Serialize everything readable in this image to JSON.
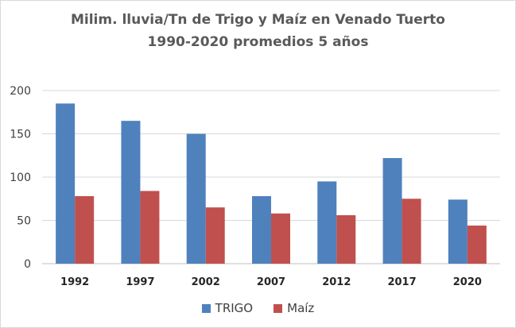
{
  "chart_data": {
    "type": "bar",
    "title_line1": "Milim. lluvia/Tn de Trigo y Maíz  en Venado Tuerto",
    "title_line2": "1990-2020 promedios 5 años",
    "xlabel": "",
    "ylabel": "",
    "categories": [
      "1992",
      "1997",
      "2002",
      "2007",
      "2012",
      "2017",
      "2020"
    ],
    "series": [
      {
        "name": "TRIGO",
        "color": "#4f81bd",
        "values": [
          185,
          165,
          150,
          78,
          95,
          122,
          74
        ]
      },
      {
        "name": "Maíz",
        "color": "#c0504d",
        "values": [
          78,
          84,
          65,
          58,
          56,
          75,
          44
        ]
      }
    ],
    "ylim": [
      0,
      200
    ],
    "yticks": [
      "0",
      "50",
      "100",
      "150",
      "200"
    ],
    "grid": true,
    "legend_position": "bottom"
  }
}
